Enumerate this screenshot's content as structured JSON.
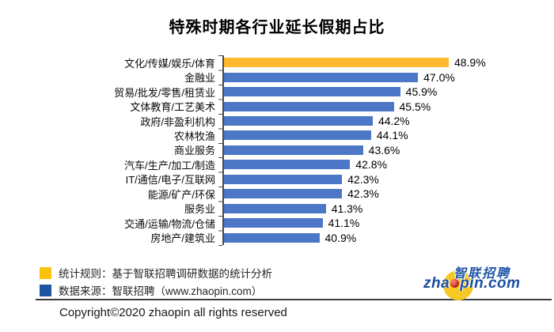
{
  "title": "特殊时期各行业延长假期占比",
  "chart_data": {
    "type": "bar",
    "orientation": "horizontal",
    "title": "特殊时期各行业延长假期占比",
    "categories": [
      "文化/传媒/娱乐/体育",
      "金融业",
      "贸易/批发/零售/租赁业",
      "文体教育/工艺美术",
      "政府/非盈利机构",
      "农林牧渔",
      "商业服务",
      "汽车/生产/加工/制造",
      "IT/通信/电子/互联网",
      "能源/矿产/环保",
      "服务业",
      "交通/运输/物流/仓储",
      "房地产/建筑业"
    ],
    "values": [
      48.9,
      47.0,
      45.9,
      45.5,
      44.2,
      44.1,
      43.6,
      42.8,
      42.3,
      42.3,
      41.3,
      41.1,
      40.9
    ],
    "value_labels": [
      "48.9%",
      "47.0%",
      "45.9%",
      "45.5%",
      "44.2%",
      "44.1%",
      "43.6%",
      "42.8%",
      "42.3%",
      "42.3%",
      "41.3%",
      "41.1%",
      "40.9%"
    ],
    "xlim": [
      35,
      49
    ],
    "grid": false,
    "highlight_index": 0,
    "colors": {
      "highlight": "#FDB92D",
      "default": "#4B77C6"
    }
  },
  "legend": {
    "items": [
      {
        "color": "#FBC20D",
        "label": "统计规则：基于智联招聘调研数据的统计分析"
      },
      {
        "color": "#1E56A0",
        "label": "数据来源：智联招聘（www.zhaopin.com）"
      }
    ]
  },
  "logo": {
    "cn": "智联招聘",
    "en_prefix": "zha",
    "en_suffix": "pin.com",
    "circle_color": "#F6C826"
  },
  "footer": {
    "copyright": "Copyright©2020 zhaopin all rights reserved"
  }
}
